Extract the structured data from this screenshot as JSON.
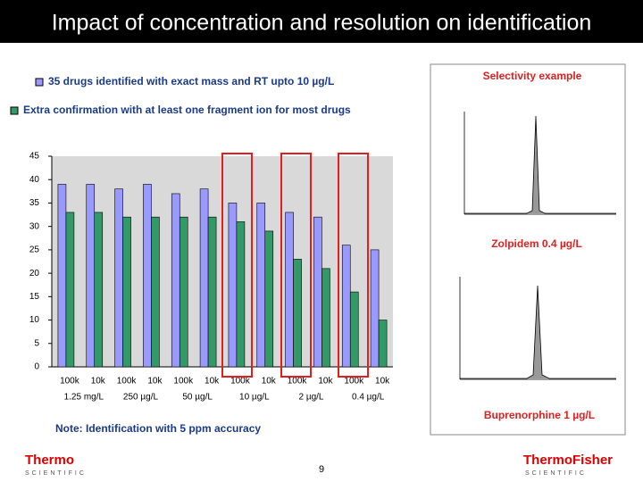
{
  "slide": {
    "title": "Impact of concentration and resolution on identification",
    "note": "Note: Identification with 5 ppm accuracy",
    "page_number": "9",
    "logo_left": "Thermo",
    "logo_left_sub": "SCIENTIFIC",
    "logo_right": "ThermoFisher",
    "logo_right_sub": "SCIENTIFIC",
    "inset_title": "Selectivity example",
    "inset_1_label": "Zolpidem 0.4 µg/L",
    "inset_2_label": "Buprenorphine 1 µg/L"
  },
  "chart_data": {
    "type": "bar",
    "categories": [
      "100k",
      "10k",
      "100k",
      "10k",
      "100k",
      "10k",
      "100k",
      "10k",
      "100k",
      "10k",
      "100k",
      "10k"
    ],
    "groups": [
      "1.25 mg/L",
      "250 µg/L",
      "50 µg/L",
      "10 µg/L",
      "2 µg/L",
      "0.4 µg/L"
    ],
    "series": [
      {
        "name": "35 drugs identified with exact mass and RT upto 10 µg/L",
        "color": "#9999ff",
        "values": [
          39,
          39,
          38,
          39,
          37,
          38,
          35,
          35,
          33,
          32,
          26,
          25
        ]
      },
      {
        "name": "Extra confirmation with at least one fragment ion for most drugs",
        "color": "#339966",
        "values": [
          33,
          33,
          32,
          32,
          32,
          32,
          31,
          29,
          23,
          21,
          16,
          10
        ]
      }
    ],
    "ylim": [
      0,
      45
    ],
    "yticks": [
      0,
      5,
      10,
      15,
      20,
      25,
      30,
      35,
      40,
      45
    ],
    "grid": false
  }
}
